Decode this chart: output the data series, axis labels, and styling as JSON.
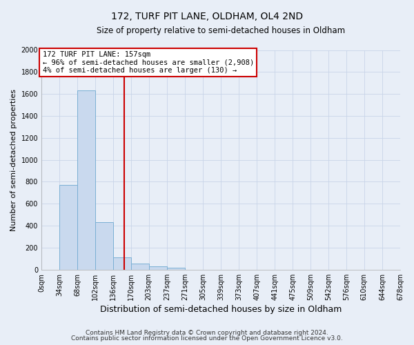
{
  "title": "172, TURF PIT LANE, OLDHAM, OL4 2ND",
  "subtitle": "Size of property relative to semi-detached houses in Oldham",
  "xlabel": "Distribution of semi-detached houses by size in Oldham",
  "ylabel": "Number of semi-detached properties",
  "bar_edges": [
    0,
    34,
    68,
    102,
    136,
    170,
    203,
    237,
    271,
    305,
    339,
    373,
    407,
    441,
    475,
    509,
    542,
    576,
    610,
    644,
    678
  ],
  "bar_heights": [
    0,
    770,
    1635,
    435,
    110,
    55,
    30,
    20,
    0,
    0,
    0,
    0,
    0,
    0,
    0,
    0,
    0,
    0,
    0,
    0
  ],
  "tick_labels": [
    "0sqm",
    "34sqm",
    "68sqm",
    "102sqm",
    "136sqm",
    "170sqm",
    "203sqm",
    "237sqm",
    "271sqm",
    "305sqm",
    "339sqm",
    "373sqm",
    "407sqm",
    "441sqm",
    "475sqm",
    "509sqm",
    "542sqm",
    "576sqm",
    "610sqm",
    "644sqm",
    "678sqm"
  ],
  "bar_color": "#c9d9ee",
  "bar_edge_color": "#7aafd4",
  "property_line_x": 157,
  "property_line_color": "#cc0000",
  "annotation_title": "172 TURF PIT LANE: 157sqm",
  "annotation_line1": "← 96% of semi-detached houses are smaller (2,908)",
  "annotation_line2": "4% of semi-detached houses are larger (130) →",
  "annotation_box_color": "#cc0000",
  "ylim": [
    0,
    2000
  ],
  "yticks": [
    0,
    200,
    400,
    600,
    800,
    1000,
    1200,
    1400,
    1600,
    1800,
    2000
  ],
  "footnote1": "Contains HM Land Registry data © Crown copyright and database right 2024.",
  "footnote2": "Contains public sector information licensed under the Open Government Licence v3.0.",
  "bg_color": "#e8eef7",
  "plot_bg_color": "#e8eef7"
}
